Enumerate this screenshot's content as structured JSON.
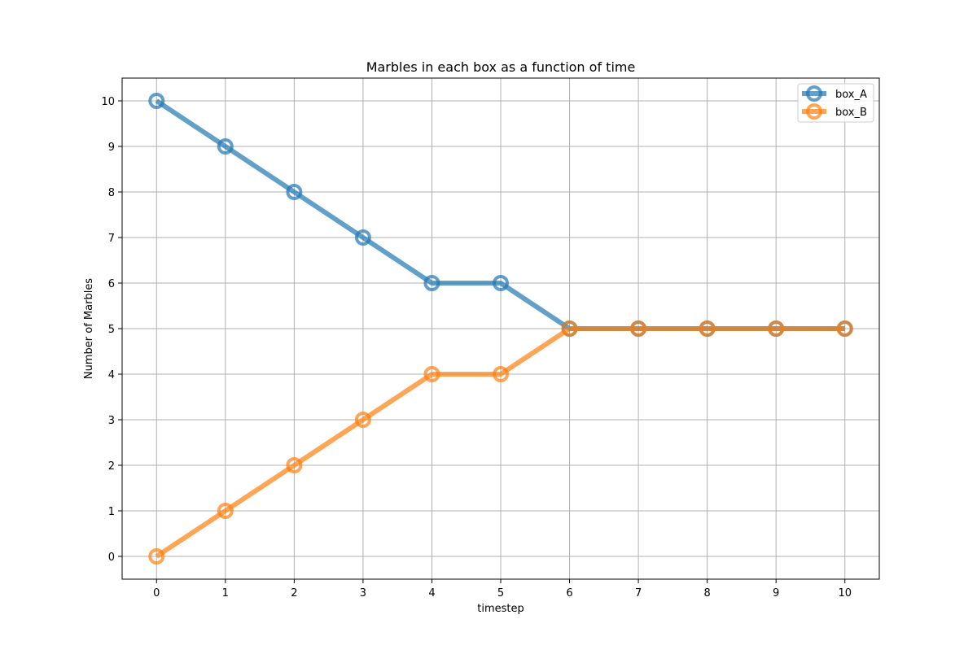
{
  "chart_data": {
    "type": "line",
    "title": "Marbles in each box as a function of time",
    "xlabel": "timestep",
    "ylabel": "Number of Marbles",
    "x": [
      0,
      1,
      2,
      3,
      4,
      5,
      6,
      7,
      8,
      9,
      10
    ],
    "xlim": [
      -0.5,
      10.5
    ],
    "ylim": [
      -0.5,
      10.5
    ],
    "xticks": [
      "0",
      "1",
      "2",
      "3",
      "4",
      "5",
      "6",
      "7",
      "8",
      "9",
      "10"
    ],
    "yticks": [
      "0",
      "1",
      "2",
      "3",
      "4",
      "5",
      "6",
      "7",
      "8",
      "9",
      "10"
    ],
    "grid": true,
    "legend_position": "top-right",
    "series": [
      {
        "name": "box_A",
        "color": "#1f77b4",
        "marker": "circle-open",
        "values": [
          10,
          9,
          8,
          7,
          6,
          6,
          5,
          5,
          5,
          5,
          5
        ]
      },
      {
        "name": "box_B",
        "color": "#ff7f0e",
        "marker": "circle-open",
        "values": [
          0,
          1,
          2,
          3,
          4,
          4,
          5,
          5,
          5,
          5,
          5
        ]
      }
    ]
  }
}
